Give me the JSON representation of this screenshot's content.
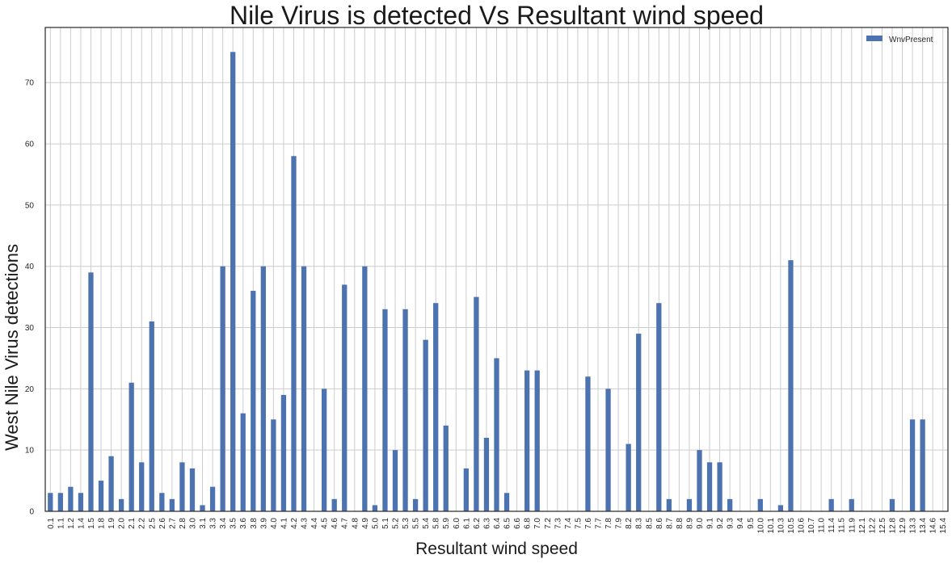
{
  "chart_data": {
    "type": "bar",
    "title": "Nile Virus is detected Vs Resultant wind speed",
    "xlabel": "Resultant wind speed",
    "ylabel": "West Nile Virus detections",
    "ylim": [
      0,
      79
    ],
    "yticks": [
      0,
      10,
      20,
      30,
      40,
      50,
      60,
      70
    ],
    "grid": true,
    "legend_position": "top-right",
    "bar_color": "#4c72b0",
    "categories": [
      "0.1",
      "1.1",
      "1.2",
      "1.4",
      "1.5",
      "1.8",
      "1.9",
      "2.0",
      "2.1",
      "2.2",
      "2.5",
      "2.6",
      "2.7",
      "2.8",
      "3.0",
      "3.1",
      "3.3",
      "3.4",
      "3.5",
      "3.6",
      "3.8",
      "3.9",
      "4.0",
      "4.1",
      "4.2",
      "4.3",
      "4.4",
      "4.5",
      "4.6",
      "4.7",
      "4.8",
      "4.9",
      "5.0",
      "5.1",
      "5.2",
      "5.3",
      "5.5",
      "5.4",
      "5.8",
      "5.9",
      "6.0",
      "6.1",
      "6.2",
      "6.3",
      "6.4",
      "6.5",
      "6.6",
      "6.8",
      "7.0",
      "7.2",
      "7.3",
      "7.4",
      "7.5",
      "7.6",
      "7.7",
      "7.8",
      "7.9",
      "8.2",
      "8.3",
      "8.5",
      "8.6",
      "8.7",
      "8.8",
      "8.9",
      "9.0",
      "9.1",
      "9.2",
      "9.3",
      "9.4",
      "9.5",
      "10.0",
      "10.1",
      "10.3",
      "10.5",
      "10.6",
      "10.7",
      "11.0",
      "11.4",
      "11.5",
      "11.9",
      "12.1",
      "12.2",
      "12.5",
      "12.8",
      "12.9",
      "13.3",
      "13.4",
      "14.6",
      "15.4"
    ],
    "series": [
      {
        "name": "WnvPresent",
        "values": [
          3,
          3,
          4,
          3,
          39,
          5,
          9,
          2,
          21,
          8,
          31,
          3,
          2,
          8,
          7,
          1,
          4,
          40,
          75,
          16,
          36,
          40,
          15,
          19,
          58,
          40,
          0,
          20,
          2,
          37,
          0,
          40,
          1,
          33,
          10,
          33,
          2,
          28,
          34,
          14,
          0,
          7,
          35,
          12,
          25,
          3,
          0,
          23,
          23,
          0,
          0,
          0,
          0,
          22,
          0,
          20,
          0,
          11,
          29,
          0,
          34,
          2,
          0,
          2,
          10,
          8,
          8,
          2,
          0,
          0,
          2,
          0,
          1,
          41,
          0,
          0,
          0,
          2,
          0,
          2,
          0,
          0,
          0,
          2,
          0,
          15,
          15,
          0,
          0
        ]
      }
    ]
  }
}
